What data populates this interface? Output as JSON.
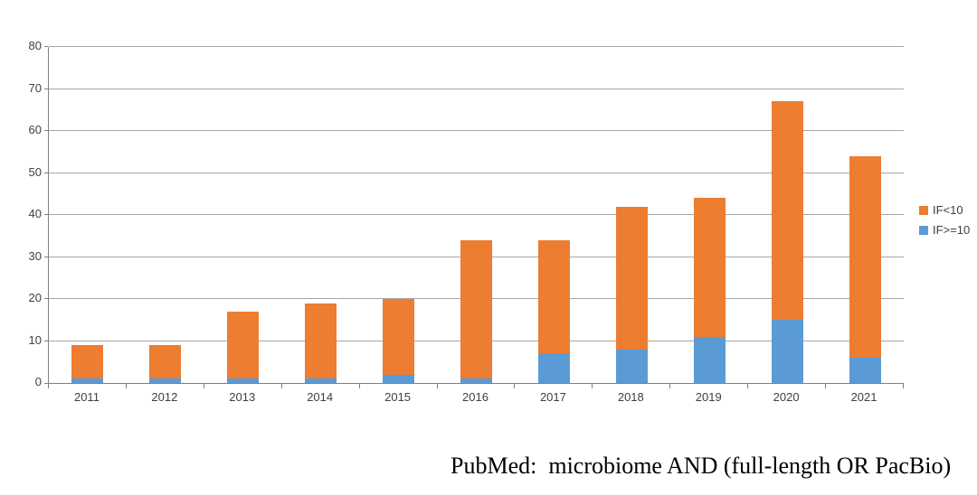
{
  "chart_data": {
    "type": "bar",
    "stacked": true,
    "title": "",
    "xlabel": "",
    "ylabel": "",
    "caption": "PubMed:  microbiome AND (full-length OR PacBio)",
    "categories": [
      "2011",
      "2012",
      "2013",
      "2014",
      "2015",
      "2016",
      "2017",
      "2018",
      "2019",
      "2020",
      "2021"
    ],
    "series": [
      {
        "name": "IF>=10",
        "color": "#5B9BD5",
        "values": [
          1,
          1,
          1,
          1,
          2,
          1,
          7,
          8,
          11,
          15,
          6
        ]
      },
      {
        "name": "IF<10",
        "color": "#ED7D31",
        "values": [
          8,
          8,
          16,
          18,
          18,
          33,
          27,
          34,
          33,
          52,
          48
        ]
      }
    ],
    "stack_totals": [
      9,
      9,
      17,
      19,
      20,
      34,
      34,
      42,
      44,
      67,
      54
    ],
    "legend": [
      {
        "label": "IF<10",
        "color": "#ED7D31"
      },
      {
        "label": "IF>=10",
        "color": "#5B9BD5"
      }
    ],
    "legend_position": "right",
    "ylim": [
      0,
      80
    ],
    "ytick_step": 10,
    "yticks": [
      0,
      10,
      20,
      30,
      40,
      50,
      60,
      70,
      80
    ],
    "grid": true
  },
  "style": {
    "gridline_color": "#a6a6a6",
    "axis_color": "#808080",
    "tick_label_color": "#404040",
    "background": "#ffffff"
  }
}
